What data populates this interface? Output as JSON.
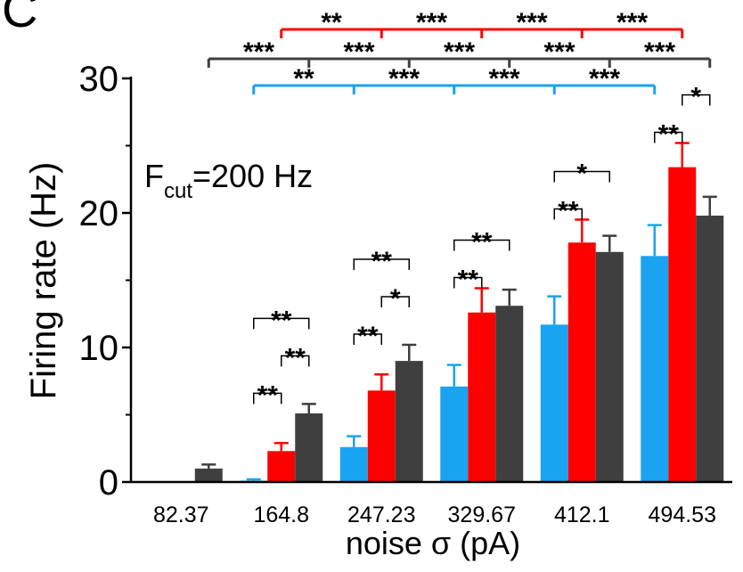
{
  "panel_label": "C",
  "colors": {
    "group_blue": "#1aa3f0",
    "group_red": "#ff0000",
    "group_dark": "#3f3f3f",
    "axis": "#000000"
  },
  "chart_data": {
    "type": "bar",
    "ylabel": "Firing rate (Hz)",
    "xlabel": "noise σ (pA)",
    "annotation": {
      "main": "F",
      "sub": "cut",
      "rest": "=200 Hz"
    },
    "ylim": [
      0,
      30
    ],
    "yticks": [
      "0",
      "10",
      "20",
      "30"
    ],
    "categories": [
      "82.37",
      "164.8",
      "247.23",
      "329.67",
      "412.1",
      "494.53"
    ],
    "series": [
      {
        "color": "#1aa3f0",
        "values": [
          0.0,
          0.1,
          2.6,
          7.1,
          11.7,
          16.8
        ],
        "errors": [
          0.0,
          0.1,
          0.8,
          1.6,
          2.1,
          2.3
        ]
      },
      {
        "color": "#ff0000",
        "values": [
          0.0,
          2.3,
          6.8,
          12.6,
          17.8,
          23.4
        ],
        "errors": [
          0.0,
          0.6,
          1.2,
          1.8,
          1.7,
          1.8
        ]
      },
      {
        "color": "#3f3f3f",
        "values": [
          1.0,
          5.1,
          9.0,
          13.1,
          17.1,
          19.8
        ],
        "errors": [
          0.3,
          0.7,
          1.2,
          1.2,
          1.2,
          1.4
        ]
      }
    ],
    "within_group_significance": [
      {
        "category": 1,
        "pairs": [
          {
            "a": 0,
            "b": 1,
            "label": "**"
          },
          {
            "a": 1,
            "b": 2,
            "label": "**"
          },
          {
            "a": 0,
            "b": 2,
            "label": "**"
          }
        ]
      },
      {
        "category": 2,
        "pairs": [
          {
            "a": 0,
            "b": 1,
            "label": "**"
          },
          {
            "a": 1,
            "b": 2,
            "label": "*"
          },
          {
            "a": 0,
            "b": 2,
            "label": "**"
          }
        ]
      },
      {
        "category": 3,
        "pairs": [
          {
            "a": 0,
            "b": 1,
            "label": "**"
          },
          {
            "a": 0,
            "b": 2,
            "label": "**"
          }
        ]
      },
      {
        "category": 4,
        "pairs": [
          {
            "a": 0,
            "b": 1,
            "label": "**"
          },
          {
            "a": 0,
            "b": 2,
            "label": "*"
          }
        ]
      },
      {
        "category": 5,
        "pairs": [
          {
            "a": 0,
            "b": 1,
            "label": "**"
          },
          {
            "a": 1,
            "b": 2,
            "label": "*"
          }
        ]
      }
    ],
    "between_group_significance": [
      {
        "series": 1,
        "color": "#ff0000",
        "from_category": 1,
        "labels": [
          "**",
          "***",
          "***",
          "***"
        ]
      },
      {
        "series": 2,
        "color": "#3f3f3f",
        "from_category": 0,
        "labels": [
          "***",
          "***",
          "***",
          "***",
          "***"
        ]
      },
      {
        "series": 0,
        "color": "#1aa3f0",
        "from_category": 1,
        "labels": [
          "**",
          "***",
          "***",
          "***"
        ]
      }
    ]
  }
}
